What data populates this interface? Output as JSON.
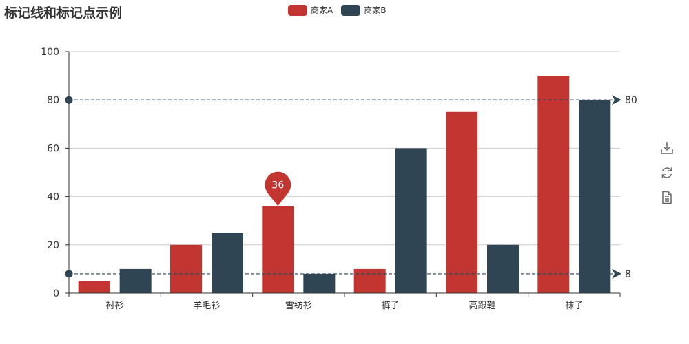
{
  "colors": {
    "series_a": "#c23531",
    "series_b": "#2f4554",
    "axis": "#333333",
    "grid": "#cccccc",
    "markline": "#2f4554"
  },
  "icons": [
    "download-icon",
    "refresh-icon",
    "data-view-icon"
  ],
  "chart_data": {
    "type": "bar",
    "title": "标记线和标记点示例",
    "categories": [
      "衬衫",
      "羊毛衫",
      "雪纺衫",
      "裤子",
      "高跟鞋",
      "袜子"
    ],
    "series": [
      {
        "name": "商家A",
        "values": [
          5,
          20,
          36,
          10,
          75,
          90
        ]
      },
      {
        "name": "商家B",
        "values": [
          10,
          25,
          8,
          60,
          20,
          80
        ]
      }
    ],
    "ylim": [
      0,
      100
    ],
    "yticks": [
      "0",
      "20",
      "40",
      "60",
      "80",
      "100"
    ],
    "grid": true,
    "legend_position": "top-center",
    "mark_point": {
      "series": "商家A",
      "category": "雪纺衫",
      "value": 36,
      "label": "36"
    },
    "mark_lines": [
      {
        "series": "商家B",
        "value": 80,
        "label": "80",
        "meaning": "max"
      },
      {
        "series": "商家B",
        "value": 8,
        "label": "8",
        "meaning": "min"
      }
    ]
  }
}
